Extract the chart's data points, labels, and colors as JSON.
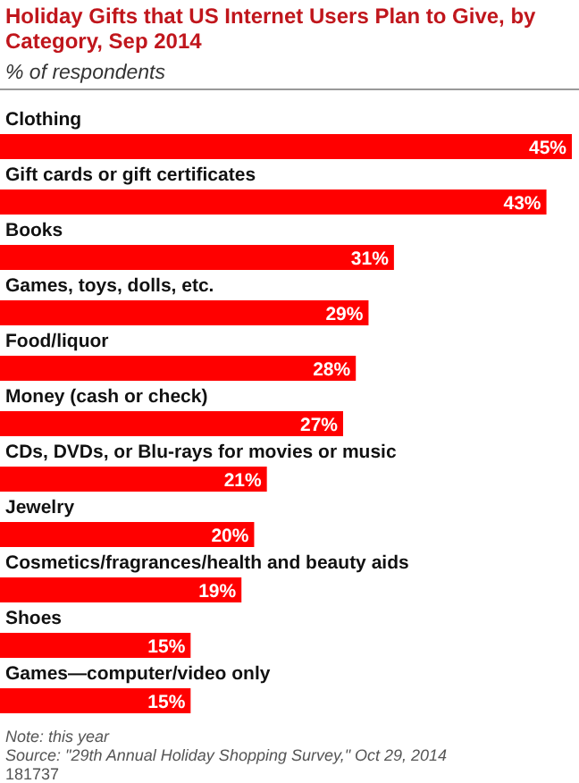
{
  "chart_data": {
    "type": "bar",
    "orientation": "horizontal",
    "title": "Holiday Gifts that US Internet Users Plan to Give, by Category, Sep 2014",
    "subtitle": "% of respondents",
    "categories": [
      "Clothing",
      "Gift cards or gift certificates",
      "Books",
      "Games, toys, dolls, etc.",
      "Food/liquor",
      "Money (cash or check)",
      "CDs, DVDs, or Blu-rays for movies or music",
      "Jewelry",
      "Cosmetics/fragrances/health and beauty aids",
      "Shoes",
      "Games—computer/video only"
    ],
    "values": [
      45,
      43,
      31,
      29,
      28,
      27,
      21,
      20,
      19,
      15,
      15
    ],
    "value_labels": [
      "45%",
      "43%",
      "31%",
      "29%",
      "28%",
      "27%",
      "21%",
      "20%",
      "19%",
      "15%",
      "15%"
    ],
    "color": "#ff0000",
    "annotations": [
      "Note: this year",
      "Source: \"29th Annual Holiday Shopping Survey,\" Oct 29, 2014",
      "181737"
    ]
  }
}
